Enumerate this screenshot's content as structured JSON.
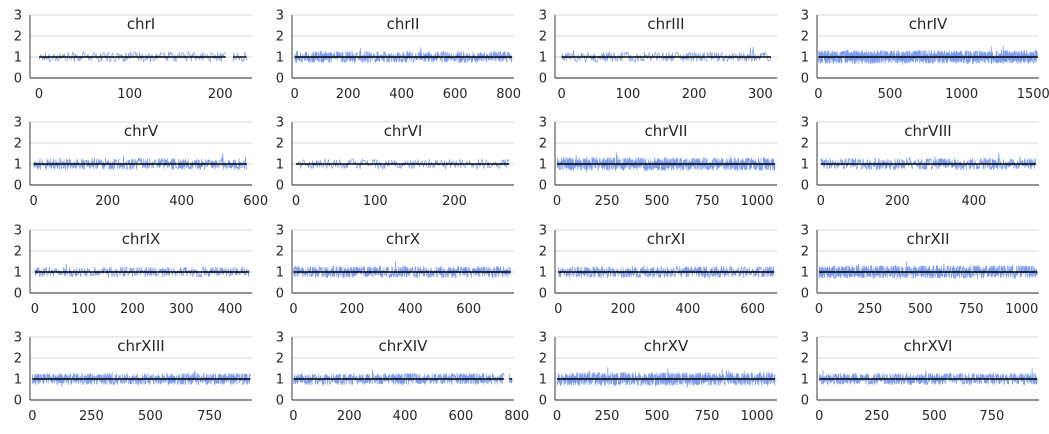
{
  "colors": {
    "signal": "#4c78e8",
    "median": "#000000",
    "grid": "#cccccc",
    "axis": "#262626"
  },
  "chart_data": [
    {
      "type": "line",
      "title": "chrI",
      "xlim": [
        -10,
        235
      ],
      "ylim": [
        0,
        3
      ],
      "xticks": [
        0,
        100,
        200
      ],
      "yticks": [
        0,
        1,
        2,
        3
      ],
      "n_points": 230,
      "median": 1.0,
      "gaps": [
        [
          207,
          213
        ]
      ],
      "y_typical": [
        0.75,
        1.35
      ]
    },
    {
      "type": "line",
      "title": "chrII",
      "xlim": [
        -10,
        820
      ],
      "ylim": [
        0,
        3
      ],
      "xticks": [
        0,
        200,
        400,
        600,
        800
      ],
      "yticks": [
        0,
        1,
        2,
        3
      ],
      "n_points": 813,
      "median": 1.0,
      "y_typical": [
        0.7,
        1.4
      ]
    },
    {
      "type": "line",
      "title": "chrIII",
      "xlim": [
        -10,
        325
      ],
      "ylim": [
        0,
        3
      ],
      "xticks": [
        0,
        100,
        200,
        300
      ],
      "yticks": [
        0,
        1,
        2,
        3
      ],
      "n_points": 317,
      "median": 1.0,
      "y_typical": [
        0.75,
        1.35
      ]
    },
    {
      "type": "line",
      "title": "chrIV",
      "xlim": [
        -10,
        1540
      ],
      "ylim": [
        0,
        3
      ],
      "xticks": [
        0,
        500,
        1000,
        1500
      ],
      "yticks": [
        0,
        1,
        2,
        3
      ],
      "n_points": 1532,
      "median": 1.0,
      "y_typical": [
        0.65,
        1.45
      ]
    },
    {
      "type": "line",
      "title": "chrV",
      "xlim": [
        -10,
        590
      ],
      "ylim": [
        0,
        3
      ],
      "xticks": [
        0,
        200,
        400,
        600
      ],
      "yticks": [
        0,
        1,
        2,
        3
      ],
      "n_points": 577,
      "median": 1.0,
      "y_typical": [
        0.7,
        1.4
      ]
    },
    {
      "type": "line",
      "title": "chrVI",
      "xlim": [
        -5,
        275
      ],
      "ylim": [
        0,
        3
      ],
      "xticks": [
        0,
        100,
        200
      ],
      "yticks": [
        0,
        1,
        2,
        3
      ],
      "n_points": 270,
      "median": 1.0,
      "y_typical": [
        0.75,
        1.35
      ]
    },
    {
      "type": "line",
      "title": "chrVII",
      "xlim": [
        -10,
        1100
      ],
      "ylim": [
        0,
        3
      ],
      "xticks": [
        0,
        250,
        500,
        750,
        1000
      ],
      "yticks": [
        0,
        1,
        2,
        3
      ],
      "n_points": 1091,
      "median": 1.0,
      "y_typical": [
        0.65,
        1.45
      ]
    },
    {
      "type": "line",
      "title": "chrVIII",
      "xlim": [
        -10,
        570
      ],
      "ylim": [
        0,
        3
      ],
      "xticks": [
        0,
        200,
        400
      ],
      "yticks": [
        0,
        1,
        2,
        3
      ],
      "n_points": 563,
      "median": 1.0,
      "y_typical": [
        0.7,
        1.4
      ]
    },
    {
      "type": "line",
      "title": "chrIX",
      "xlim": [
        -10,
        445
      ],
      "ylim": [
        0,
        3
      ],
      "xticks": [
        0,
        100,
        200,
        300,
        400
      ],
      "yticks": [
        0,
        1,
        2,
        3
      ],
      "n_points": 440,
      "median": 1.0,
      "y_typical": [
        0.75,
        1.35
      ]
    },
    {
      "type": "line",
      "title": "chrX",
      "xlim": [
        -5,
        755
      ],
      "ylim": [
        0,
        3
      ],
      "xticks": [
        0,
        200,
        400,
        600
      ],
      "yticks": [
        0,
        1,
        2,
        3
      ],
      "n_points": 745,
      "median": 1.0,
      "y_typical": [
        0.7,
        1.4
      ]
    },
    {
      "type": "line",
      "title": "chrXI",
      "xlim": [
        -10,
        675
      ],
      "ylim": [
        0,
        3
      ],
      "xticks": [
        0,
        200,
        400,
        600
      ],
      "yticks": [
        0,
        1,
        2,
        3
      ],
      "n_points": 667,
      "median": 1.0,
      "y_typical": [
        0.7,
        1.4
      ]
    },
    {
      "type": "line",
      "title": "chrXII",
      "xlim": [
        -10,
        1085
      ],
      "ylim": [
        0,
        3
      ],
      "xticks": [
        0,
        250,
        500,
        750,
        1000
      ],
      "yticks": [
        0,
        1,
        2,
        3
      ],
      "n_points": 1078,
      "median": 1.0,
      "y_typical": [
        0.65,
        1.45
      ]
    },
    {
      "type": "line",
      "title": "chrXIII",
      "xlim": [
        -10,
        930
      ],
      "ylim": [
        0,
        3
      ],
      "xticks": [
        0,
        250,
        500,
        750
      ],
      "yticks": [
        0,
        1,
        2,
        3
      ],
      "n_points": 924,
      "median": 1.0,
      "y_typical": [
        0.7,
        1.4
      ]
    },
    {
      "type": "line",
      "title": "chrXIV",
      "xlim": [
        -5,
        790
      ],
      "ylim": [
        0,
        3
      ],
      "xticks": [
        0,
        200,
        400,
        600,
        800
      ],
      "yticks": [
        0,
        1,
        2,
        3
      ],
      "n_points": 784,
      "median": 1.0,
      "gaps": [
        [
          755,
          772
        ]
      ],
      "y_typical": [
        0.7,
        1.4
      ]
    },
    {
      "type": "line",
      "title": "chrXV",
      "xlim": [
        -10,
        1100
      ],
      "ylim": [
        0,
        3
      ],
      "xticks": [
        0,
        250,
        500,
        750,
        1000
      ],
      "yticks": [
        0,
        1,
        2,
        3
      ],
      "n_points": 1091,
      "median": 1.0,
      "y_typical": [
        0.65,
        1.45
      ]
    },
    {
      "type": "line",
      "title": "chrXVI",
      "xlim": [
        -10,
        955
      ],
      "ylim": [
        0,
        3
      ],
      "xticks": [
        0,
        250,
        500,
        750
      ],
      "yticks": [
        0,
        1,
        2,
        3
      ],
      "n_points": 948,
      "median": 1.0,
      "y_typical": [
        0.7,
        1.4
      ]
    }
  ]
}
